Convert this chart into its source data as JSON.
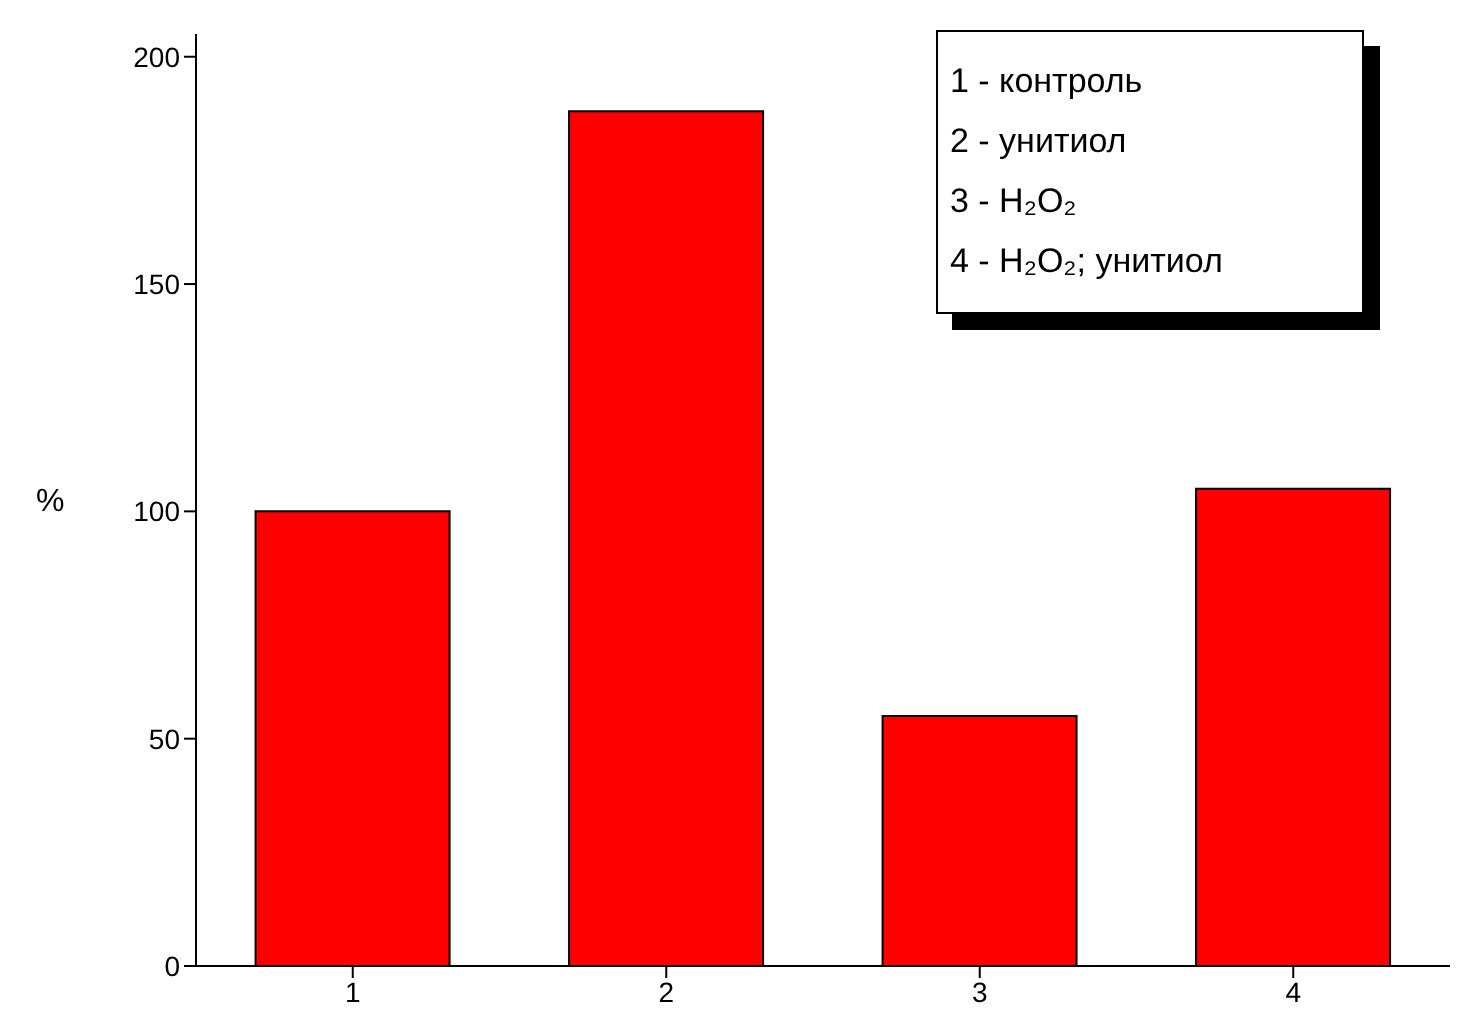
{
  "chart_data": {
    "type": "bar",
    "ylabel": "%",
    "categories": [
      "1",
      "2",
      "3",
      "4"
    ],
    "values": [
      100,
      188,
      55,
      105
    ],
    "color": "#ff0000",
    "ylim": [
      0,
      205
    ],
    "yticks": [
      0,
      50,
      100,
      150,
      200
    ],
    "grid": false,
    "legend": false,
    "annotations": [
      "1 - контроль",
      "2 - унитиол",
      "3 - H₂O₂",
      "4 - H₂O₂; унитиол"
    ]
  }
}
